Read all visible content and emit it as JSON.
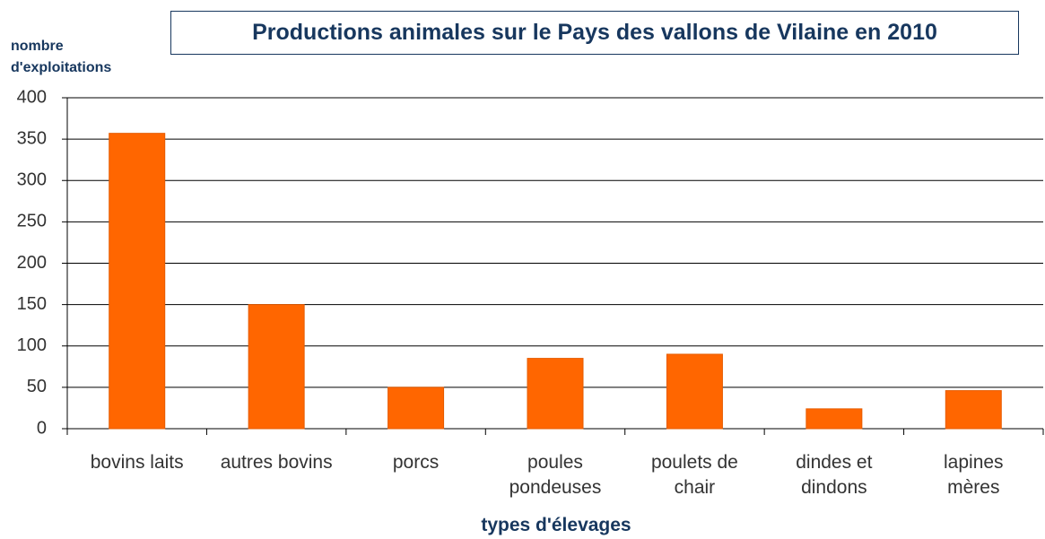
{
  "chart_data": {
    "type": "bar",
    "title": "Productions animales sur le Pays des vallons de Vilaine en 2010",
    "y_label": "nombre\nd'exploitations",
    "x_label": "types d'élevages",
    "categories": [
      "bovins laits",
      "autres bovins",
      "porcs",
      "poules\npondeuses",
      "poulets de\nchair",
      "dindes et\ndindons",
      "lapines\nmères"
    ],
    "values": [
      357,
      150,
      50,
      85,
      90,
      24,
      46
    ],
    "color": "#ff6600",
    "ylim": [
      0,
      400
    ],
    "yticks": [
      0,
      50,
      100,
      150,
      200,
      250,
      300,
      350,
      400
    ],
    "grid": true
  }
}
